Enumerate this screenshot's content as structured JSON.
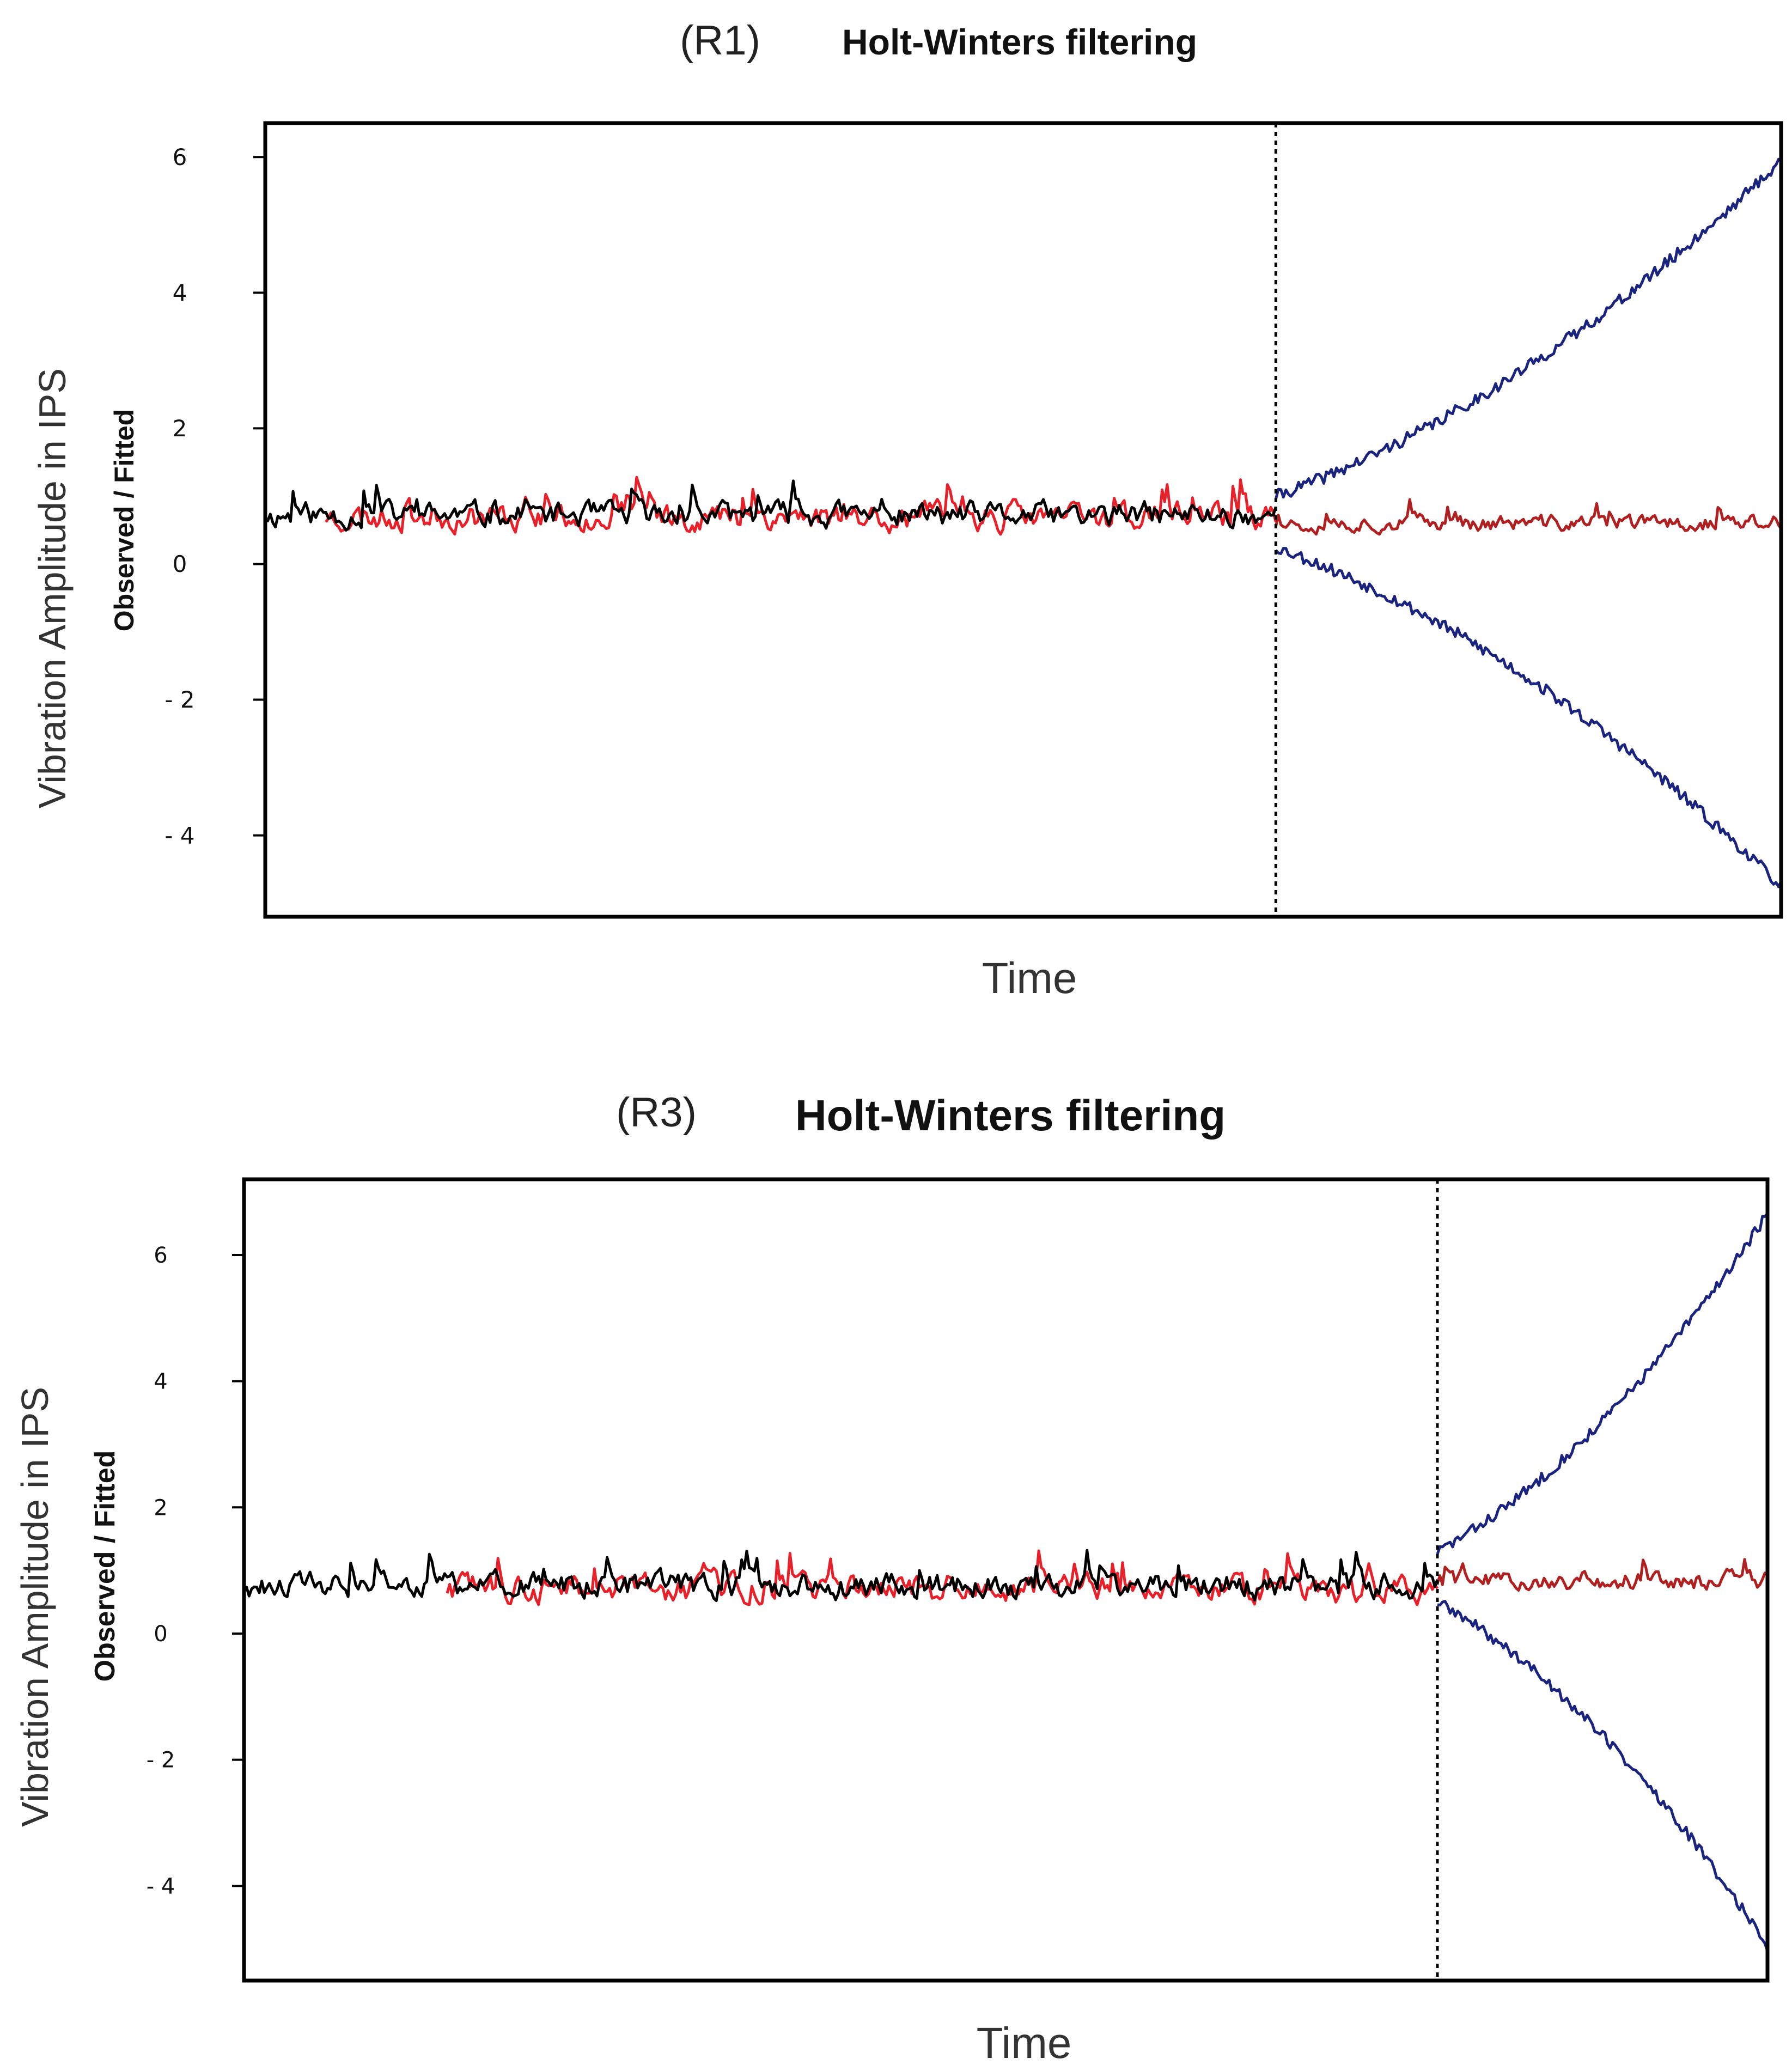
{
  "chart_data": [
    {
      "type": "line",
      "panel_label": "(R1)",
      "title": "Holt-Winters filtering",
      "xlabel": "Time",
      "ylabel_outer": "Vibration Amplitude in IPS",
      "ylabel_inner": "Observed / Fitted",
      "ylim": [
        -5.2,
        6.5
      ],
      "yticks": [
        -4,
        -2,
        0,
        2,
        4,
        6
      ],
      "ytick_labels": [
        "- 4",
        "- 2",
        "0",
        "2",
        "4",
        "6"
      ],
      "x_range": [
        0,
        300
      ],
      "forecast_start": 200,
      "grid": false,
      "series": [
        {
          "name": "Observed",
          "color": "#000000",
          "x_start": 0,
          "x_end": 200,
          "level": 0.72,
          "noise": 0.18,
          "seed": 11
        },
        {
          "name": "Fitted",
          "color": "#e8202a",
          "x_start": 12,
          "x_end": 200,
          "level": 0.7,
          "noise": 0.2,
          "seed": 23
        },
        {
          "name": "Forecast",
          "color": "#b02020",
          "x_start": 200,
          "x_end": 300,
          "level": 0.6,
          "noise": 0.12,
          "seed": 37
        },
        {
          "name": "Upper bound",
          "color": "#1a237e",
          "x_start": 200,
          "x_end": 300,
          "start": 1.0,
          "end": 5.95,
          "seed": 41
        },
        {
          "name": "Lower bound",
          "color": "#1a237e",
          "x_start": 200,
          "x_end": 300,
          "start": 0.25,
          "end": -4.75,
          "seed": 53
        }
      ]
    },
    {
      "type": "line",
      "panel_label": "(R3)",
      "title": "Holt-Winters filtering",
      "xlabel": "Time",
      "ylabel_outer": "Vibration Amplitude in IPS",
      "ylabel_inner": "Observed / Fitted",
      "ylim": [
        -5.5,
        7.2
      ],
      "yticks": [
        -4,
        -2,
        0,
        2,
        4,
        6
      ],
      "ytick_labels": [
        "- 4",
        "- 2",
        "0",
        "2",
        "4",
        "6"
      ],
      "x_range": [
        0,
        300
      ],
      "forecast_start": 235,
      "grid": false,
      "series": [
        {
          "name": "Observed",
          "color": "#000000",
          "x_start": 0,
          "x_end": 235,
          "level": 0.75,
          "noise": 0.2,
          "seed": 61
        },
        {
          "name": "Fitted",
          "color": "#e8202a",
          "x_start": 40,
          "x_end": 235,
          "level": 0.72,
          "noise": 0.22,
          "seed": 73
        },
        {
          "name": "Forecast",
          "color": "#b02020",
          "x_start": 235,
          "x_end": 300,
          "level": 0.85,
          "noise": 0.15,
          "seed": 79
        },
        {
          "name": "Upper bound",
          "color": "#1a237e",
          "x_start": 235,
          "x_end": 300,
          "start": 1.3,
          "end": 6.65,
          "seed": 83
        },
        {
          "name": "Lower bound",
          "color": "#1a237e",
          "x_start": 235,
          "x_end": 300,
          "start": 0.5,
          "end": -4.95,
          "seed": 89
        }
      ]
    }
  ]
}
